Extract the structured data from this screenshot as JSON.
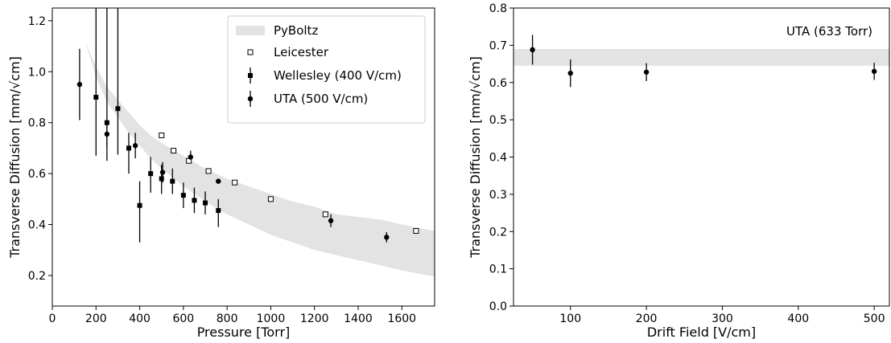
{
  "colors": {
    "band": "#e3e3e3",
    "axis": "#000000",
    "marker": "#000000",
    "open_marker_fill": "#ffffff"
  },
  "chart_data": [
    {
      "type": "scatter",
      "xlabel": "Pressure [Torr]",
      "ylabel": "Transverse Diffusion [mm/√cm]",
      "xlim": [
        0,
        1750
      ],
      "ylim": [
        0.08,
        1.25
      ],
      "xticks": [
        0,
        200,
        400,
        600,
        800,
        1000,
        1200,
        1400,
        1600
      ],
      "xtick_labels": [
        "0",
        "200",
        "400",
        "600",
        "800",
        "1000",
        "1200",
        "1400",
        "1600"
      ],
      "yticks": [
        0.2,
        0.4,
        0.6,
        0.8,
        1.0,
        1.2
      ],
      "ytick_labels": [
        "0.2",
        "0.4",
        "0.6",
        "0.8",
        "1.0",
        "1.2"
      ],
      "grid": false,
      "legend_position": "top-right",
      "legend": [
        {
          "label": "PyBoltz",
          "marker": "band"
        },
        {
          "label": "Leicester",
          "marker": "open-square"
        },
        {
          "label": "Wellesley (400 V/cm)",
          "marker": "filled-square-errorbar"
        },
        {
          "label": "UTA (500 V/cm)",
          "marker": "filled-circle-errorbar"
        }
      ],
      "band": {
        "name": "PyBoltz",
        "x": [
          120,
          150,
          200,
          250,
          300,
          350,
          400,
          450,
          500,
          600,
          700,
          800,
          900,
          1000,
          1100,
          1200,
          1300,
          1400,
          1500,
          1600,
          1750
        ],
        "upper": [
          1.25,
          1.12,
          1.02,
          0.94,
          0.89,
          0.84,
          0.79,
          0.75,
          0.72,
          0.67,
          0.62,
          0.58,
          0.55,
          0.52,
          0.49,
          0.47,
          0.44,
          0.43,
          0.42,
          0.4,
          0.375
        ],
        "lower": [
          1.25,
          1.12,
          0.98,
          0.88,
          0.82,
          0.76,
          0.71,
          0.66,
          0.62,
          0.55,
          0.49,
          0.44,
          0.4,
          0.36,
          0.33,
          0.3,
          0.28,
          0.26,
          0.24,
          0.22,
          0.195
        ]
      },
      "series": [
        {
          "name": "Leicester",
          "marker": "open-square",
          "points": [
            {
              "x": 500,
              "y": 0.75
            },
            {
              "x": 555,
              "y": 0.69
            },
            {
              "x": 625,
              "y": 0.65
            },
            {
              "x": 715,
              "y": 0.61
            },
            {
              "x": 835,
              "y": 0.565
            },
            {
              "x": 1000,
              "y": 0.5
            },
            {
              "x": 1250,
              "y": 0.44
            },
            {
              "x": 1665,
              "y": 0.375
            }
          ]
        },
        {
          "name": "Wellesley (400 V/cm)",
          "marker": "filled-square-errorbar",
          "points": [
            {
              "x": 200,
              "y": 0.9,
              "err_low": 0.23,
              "err_high": 0.4
            },
            {
              "x": 250,
              "y": 0.8,
              "err_low": 0.15,
              "err_high": 0.45
            },
            {
              "x": 300,
              "y": 0.855,
              "err_low": 0.18,
              "err_high": 0.4
            },
            {
              "x": 350,
              "y": 0.7,
              "err_low": 0.1,
              "err_high": 0.06
            },
            {
              "x": 400,
              "y": 0.475,
              "err_low": 0.145,
              "err_high": 0.095
            },
            {
              "x": 450,
              "y": 0.6,
              "err_low": 0.075,
              "err_high": 0.065
            },
            {
              "x": 500,
              "y": 0.58,
              "err_low": 0.06,
              "err_high": 0.055
            },
            {
              "x": 550,
              "y": 0.57,
              "err_low": 0.05,
              "err_high": 0.05
            },
            {
              "x": 600,
              "y": 0.515,
              "err_low": 0.05,
              "err_high": 0.05
            },
            {
              "x": 650,
              "y": 0.495,
              "err_low": 0.05,
              "err_high": 0.05
            },
            {
              "x": 700,
              "y": 0.485,
              "err_low": 0.045,
              "err_high": 0.045
            },
            {
              "x": 760,
              "y": 0.455,
              "err_low": 0.065,
              "err_high": 0.045
            }
          ]
        },
        {
          "name": "UTA (500 V/cm)",
          "marker": "filled-circle-errorbar",
          "points": [
            {
              "x": 125,
              "y": 0.95,
              "err": 0.14
            },
            {
              "x": 250,
              "y": 0.755,
              "err": 0.05
            },
            {
              "x": 380,
              "y": 0.71,
              "err": 0.05
            },
            {
              "x": 505,
              "y": 0.605,
              "err": 0.04
            },
            {
              "x": 633,
              "y": 0.665,
              "err": 0.025
            },
            {
              "x": 760,
              "y": 0.57,
              "err": 0.01
            },
            {
              "x": 1275,
              "y": 0.415,
              "err": 0.025
            },
            {
              "x": 1530,
              "y": 0.35,
              "err": 0.02
            }
          ]
        }
      ]
    },
    {
      "type": "scatter",
      "xlabel": "Drift Field [V/cm]",
      "ylabel": "Transverse Diffusion [mm/√cm]",
      "xlim": [
        25,
        520
      ],
      "ylim": [
        0.0,
        0.8
      ],
      "xticks": [
        100,
        200,
        300,
        400,
        500
      ],
      "xtick_labels": [
        "100",
        "200",
        "300",
        "400",
        "500"
      ],
      "yticks": [
        0.0,
        0.1,
        0.2,
        0.3,
        0.4,
        0.5,
        0.6,
        0.7,
        0.8
      ],
      "ytick_labels": [
        "0.0",
        "0.1",
        "0.2",
        "0.3",
        "0.4",
        "0.5",
        "0.6",
        "0.7",
        "0.8"
      ],
      "grid": false,
      "annotation": "UTA (633 Torr)",
      "band": {
        "lower": 0.645,
        "upper": 0.69
      },
      "series": [
        {
          "marker": "filled-circle-errorbar",
          "points": [
            {
              "x": 50,
              "y": 0.688,
              "err": 0.04
            },
            {
              "x": 100,
              "y": 0.625,
              "err": 0.037
            },
            {
              "x": 200,
              "y": 0.628,
              "err": 0.024
            },
            {
              "x": 500,
              "y": 0.63,
              "err": 0.023
            }
          ]
        }
      ]
    }
  ]
}
